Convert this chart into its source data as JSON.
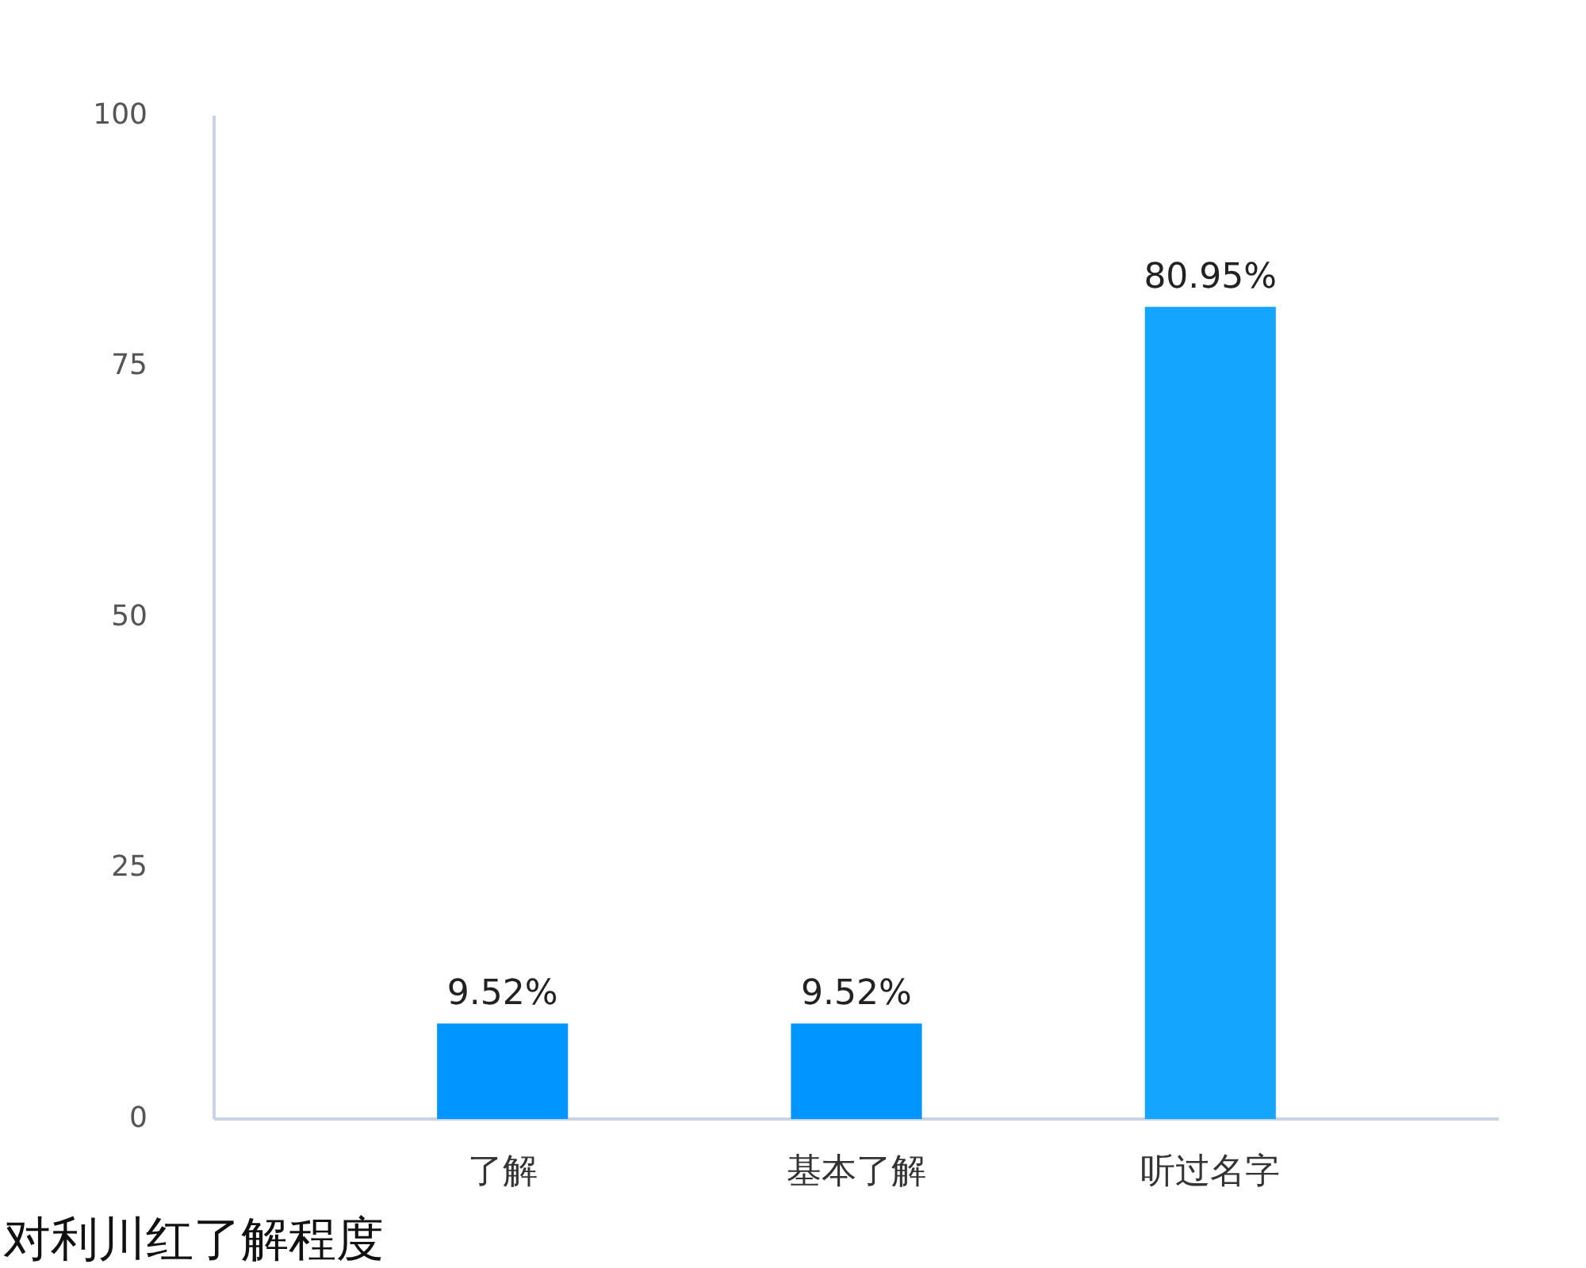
{
  "chart_data": {
    "type": "bar",
    "title": "对利川红了解程度",
    "categories": [
      "了解",
      "基本了解",
      "听过名字"
    ],
    "values": [
      9.52,
      9.52,
      80.95
    ],
    "colors": [
      "#0095ff",
      "#0095ff",
      "#14a5ff"
    ],
    "value_labels": [
      "9.52%",
      "9.52%",
      "80.95%"
    ],
    "ylim": [
      0,
      100
    ],
    "yticks": [
      0,
      25,
      50,
      75,
      100
    ],
    "grid": false
  }
}
